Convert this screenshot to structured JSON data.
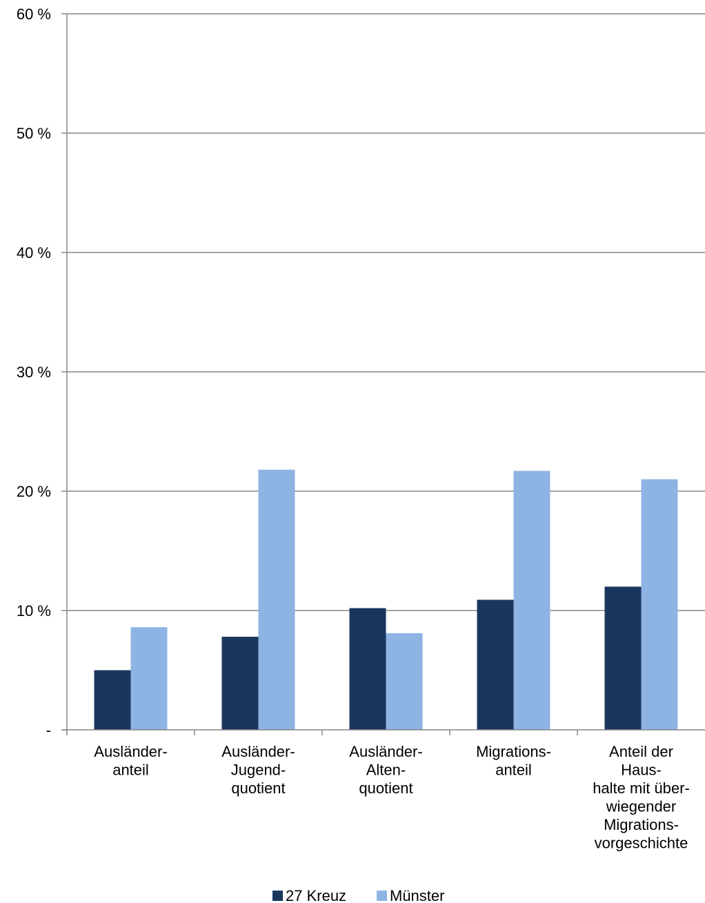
{
  "chart_data": {
    "type": "bar",
    "title": "",
    "xlabel": "",
    "ylabel": "",
    "categories": [
      [
        "Ausländer-",
        "anteil"
      ],
      [
        "Ausländer-",
        "Jugend-",
        "quotient"
      ],
      [
        "Ausländer-",
        "Alten-",
        "quotient"
      ],
      [
        "Migrations-",
        "anteil"
      ],
      [
        "Anteil der",
        "Haus-",
        "halte mit über-",
        "wiegender",
        "Migrations-",
        "vorgeschichte"
      ]
    ],
    "series": [
      {
        "name": "27 Kreuz",
        "color": "#1b365d",
        "values": [
          5.0,
          7.8,
          10.2,
          10.9,
          12.0
        ]
      },
      {
        "name": "Münster",
        "color": "#8eb4e3",
        "values": [
          8.6,
          21.8,
          8.1,
          21.7,
          21.0
        ]
      }
    ],
    "ylim": [
      0,
      60
    ],
    "yticks": [
      0,
      10,
      20,
      30,
      40,
      50,
      60
    ],
    "ytick_labels": [
      "-",
      "10 %",
      "20 %",
      "30 %",
      "40 %",
      "50 %",
      "60 %"
    ],
    "grid": true,
    "gridline_color": "#868686",
    "legend_position": "bottom-center"
  }
}
